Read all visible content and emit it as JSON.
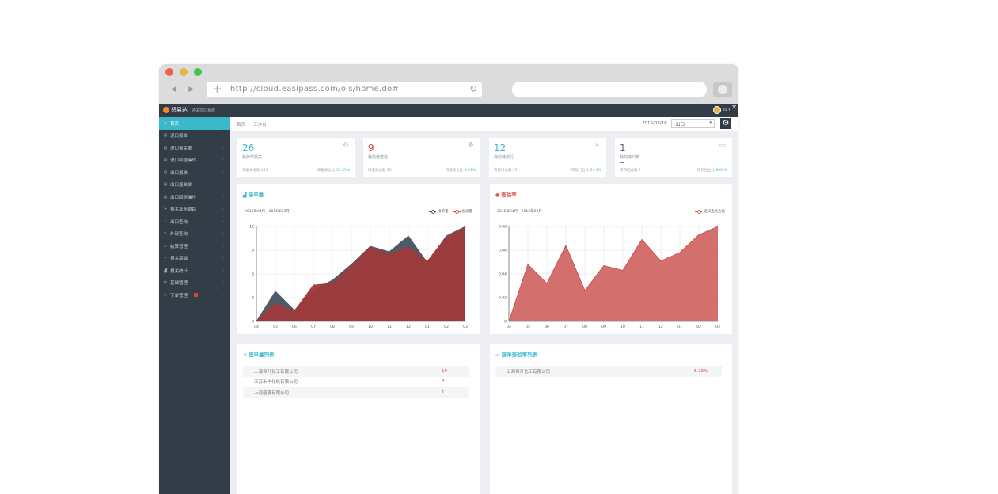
{
  "browser": {
    "url": "http://cloud.easipass.com/ols/home.do#",
    "colors": {
      "close": "#ec5f57",
      "minimize": "#e0b73f",
      "zoom": "#47c354"
    }
  },
  "app": {
    "brand": "怒易达",
    "subtitle": "通关协同系统",
    "user": "liu",
    "breadcrumb": [
      "首页",
      "工作台"
    ],
    "date": "2016/03/16",
    "select_value": "出口",
    "accent": "#3bb8c9"
  },
  "sidebar": {
    "items": [
      {
        "label": "首页",
        "icon": "home-icon",
        "active": true
      },
      {
        "label": "进口报单",
        "icon": "doc-icon"
      },
      {
        "label": "进口报关单",
        "icon": "doc-icon"
      },
      {
        "label": "进口回退操作",
        "icon": "doc-icon"
      },
      {
        "label": "出口报单",
        "icon": "doc-icon"
      },
      {
        "label": "出口报关单",
        "icon": "doc-icon"
      },
      {
        "label": "出口回退操作",
        "icon": "doc-icon"
      },
      {
        "label": "报关业务跟踪",
        "icon": "send-icon"
      },
      {
        "label": "出口查询",
        "icon": "search-icon"
      },
      {
        "label": "外部查询",
        "icon": "pencil-icon"
      },
      {
        "label": "结算管理",
        "icon": "card-icon"
      },
      {
        "label": "报关基础",
        "icon": "wrench-icon"
      },
      {
        "label": "报关统计",
        "icon": "chart-icon"
      },
      {
        "label": "基础管理",
        "icon": "gear-icon"
      },
      {
        "label": "下单管理",
        "icon": "edit-icon",
        "badge": true
      }
    ]
  },
  "stats": [
    {
      "num": "26",
      "label": "我的单报关",
      "foot_left": "单据关总数 145",
      "foot_right_label": "单据关占比",
      "foot_right_value": "53.31%",
      "color": "#3bb8c9",
      "icon": "history-icon"
    },
    {
      "num": "9",
      "label": "我的待查验",
      "foot_left": "待查验总数 33",
      "foot_right_label": "待查验占比",
      "foot_right_value": "9.83%",
      "color": "#e0443a",
      "icon": "layers-icon"
    },
    {
      "num": "12",
      "label": "我的待放行",
      "foot_left": "待放行总数 45",
      "foot_right_label": "待放行占比",
      "foot_right_value": "24.4%",
      "color": "#3bb8c9",
      "icon": "plane-icon"
    },
    {
      "num": "1",
      "label": "我的待归档",
      "foot_left": "待归档总数 2",
      "foot_right_label": "待归档占比",
      "foot_right_value": "8.65%",
      "color": "#5a6470",
      "icon": "folder-icon"
    }
  ],
  "panels": {
    "chart1_title": "接单量",
    "chart2_title": "查验率",
    "list1_title": "接单量列表",
    "list2_title": "接单查验率列表"
  },
  "chart_data": [
    {
      "type": "area",
      "title": "接单量",
      "subtitle": "2015年04月 - 2016年03月",
      "x": [
        "04",
        "05",
        "06",
        "07",
        "08",
        "09",
        "10",
        "11",
        "12",
        "01",
        "02",
        "03"
      ],
      "ylim": [
        0,
        12
      ],
      "yticks": [
        0,
        3,
        6,
        9,
        12
      ],
      "grid": true,
      "legend": "top-right",
      "series": [
        {
          "name": "接单量",
          "color": "#4d5a68",
          "values": [
            0,
            3.8,
            1.4,
            4.0,
            5.2,
            7.2,
            9.5,
            8.8,
            10.8,
            7.4,
            10.8,
            12
          ]
        },
        {
          "name": "报关量",
          "color": "#9e3b3c",
          "values": [
            0,
            2.3,
            1.3,
            4.6,
            4.8,
            7.0,
            9.4,
            8.5,
            9.4,
            7.6,
            10.7,
            11.9
          ]
        }
      ]
    },
    {
      "type": "area",
      "title": "查验率",
      "subtitle": "2015年04月 - 2016年03月",
      "x": [
        "04",
        "05",
        "06",
        "07",
        "08",
        "09",
        "10",
        "11",
        "12",
        "01",
        "02",
        "03"
      ],
      "ylim": [
        0,
        0.08
      ],
      "yticks": [
        0,
        0.02,
        0.04,
        0.06,
        0.08
      ],
      "grid": true,
      "legend": "top-right",
      "series": [
        {
          "name": "通知查验占比",
          "color": "#c9504e",
          "values": [
            0,
            0.048,
            0.032,
            0.064,
            0.026,
            0.047,
            0.043,
            0.069,
            0.051,
            0.058,
            0.073,
            0.08
          ]
        }
      ]
    }
  ],
  "list1": [
    {
      "name": "上海恒升化工有限公司",
      "value": "19"
    },
    {
      "name": "江苏禾丰化机有限公司",
      "value": "3"
    },
    {
      "name": "上海盛鑫有限公司",
      "value": "1"
    }
  ],
  "list2": [
    {
      "name": "上海恒升化工有限公司",
      "value": "5.26%"
    }
  ]
}
